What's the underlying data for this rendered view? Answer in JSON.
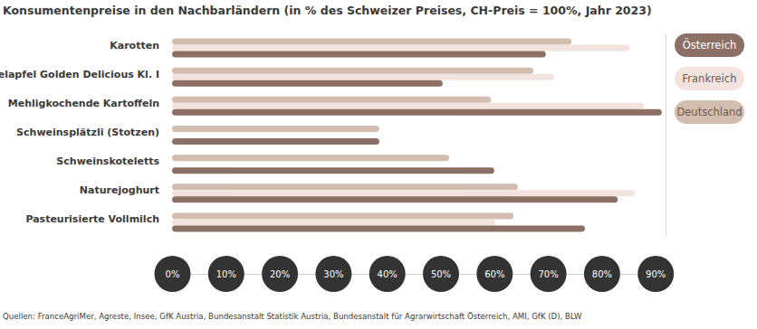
{
  "chart_data": {
    "type": "bar",
    "orientation": "horizontal",
    "title": "Konsumentenpreise in den Nachbarländern (in % des Schweizer Preises, CH-Preis = 100%, Jahr 2023)",
    "source": "Quellen: FranceAgriMer, Agreste, Insee, GfK Austria, Bundesanstalt Statistik Austria, Bundesanstalt für Agrarwirtschaft Österreich, AMI, GfK (D), BLW",
    "categories": [
      "Karotten",
      "Tafelapfel Golden Delicious Kl. I",
      "Mehligkochende Kartoffeln",
      "Schweinsplätzli (Stotzen)",
      "Schweinskoteletts",
      "Naturejoghurt",
      "Pasteurisierte Vollmilch"
    ],
    "series": [
      {
        "name": "Deutschland",
        "color": "#d3bdaf",
        "values": [
          74.4,
          67.3,
          59.4,
          38.6,
          51.6,
          64.4,
          63.6
        ]
      },
      {
        "name": "Frankreich",
        "color": "#f3e3df",
        "values": [
          85.2,
          71.2,
          87.9,
          null,
          null,
          86.2,
          60.2
        ]
      },
      {
        "name": "Österreich",
        "color": "#8c7066",
        "values": [
          69.6,
          50.4,
          91.2,
          38.6,
          60.0,
          83.0,
          76.9
        ]
      }
    ],
    "xlim": [
      0,
      92
    ],
    "xticks": [
      {
        "value": 0,
        "label": "0%"
      },
      {
        "value": 10,
        "label": "10%"
      },
      {
        "value": 20,
        "label": "20%"
      },
      {
        "value": 30,
        "label": "30%"
      },
      {
        "value": 40,
        "label": "40%"
      },
      {
        "value": 50,
        "label": "50%"
      },
      {
        "value": 60,
        "label": "60%"
      },
      {
        "value": 70,
        "label": "70%"
      },
      {
        "value": 80,
        "label": "80%"
      },
      {
        "value": 90,
        "label": "90%"
      }
    ],
    "grid": false,
    "legend": "right",
    "data_labels": false
  }
}
